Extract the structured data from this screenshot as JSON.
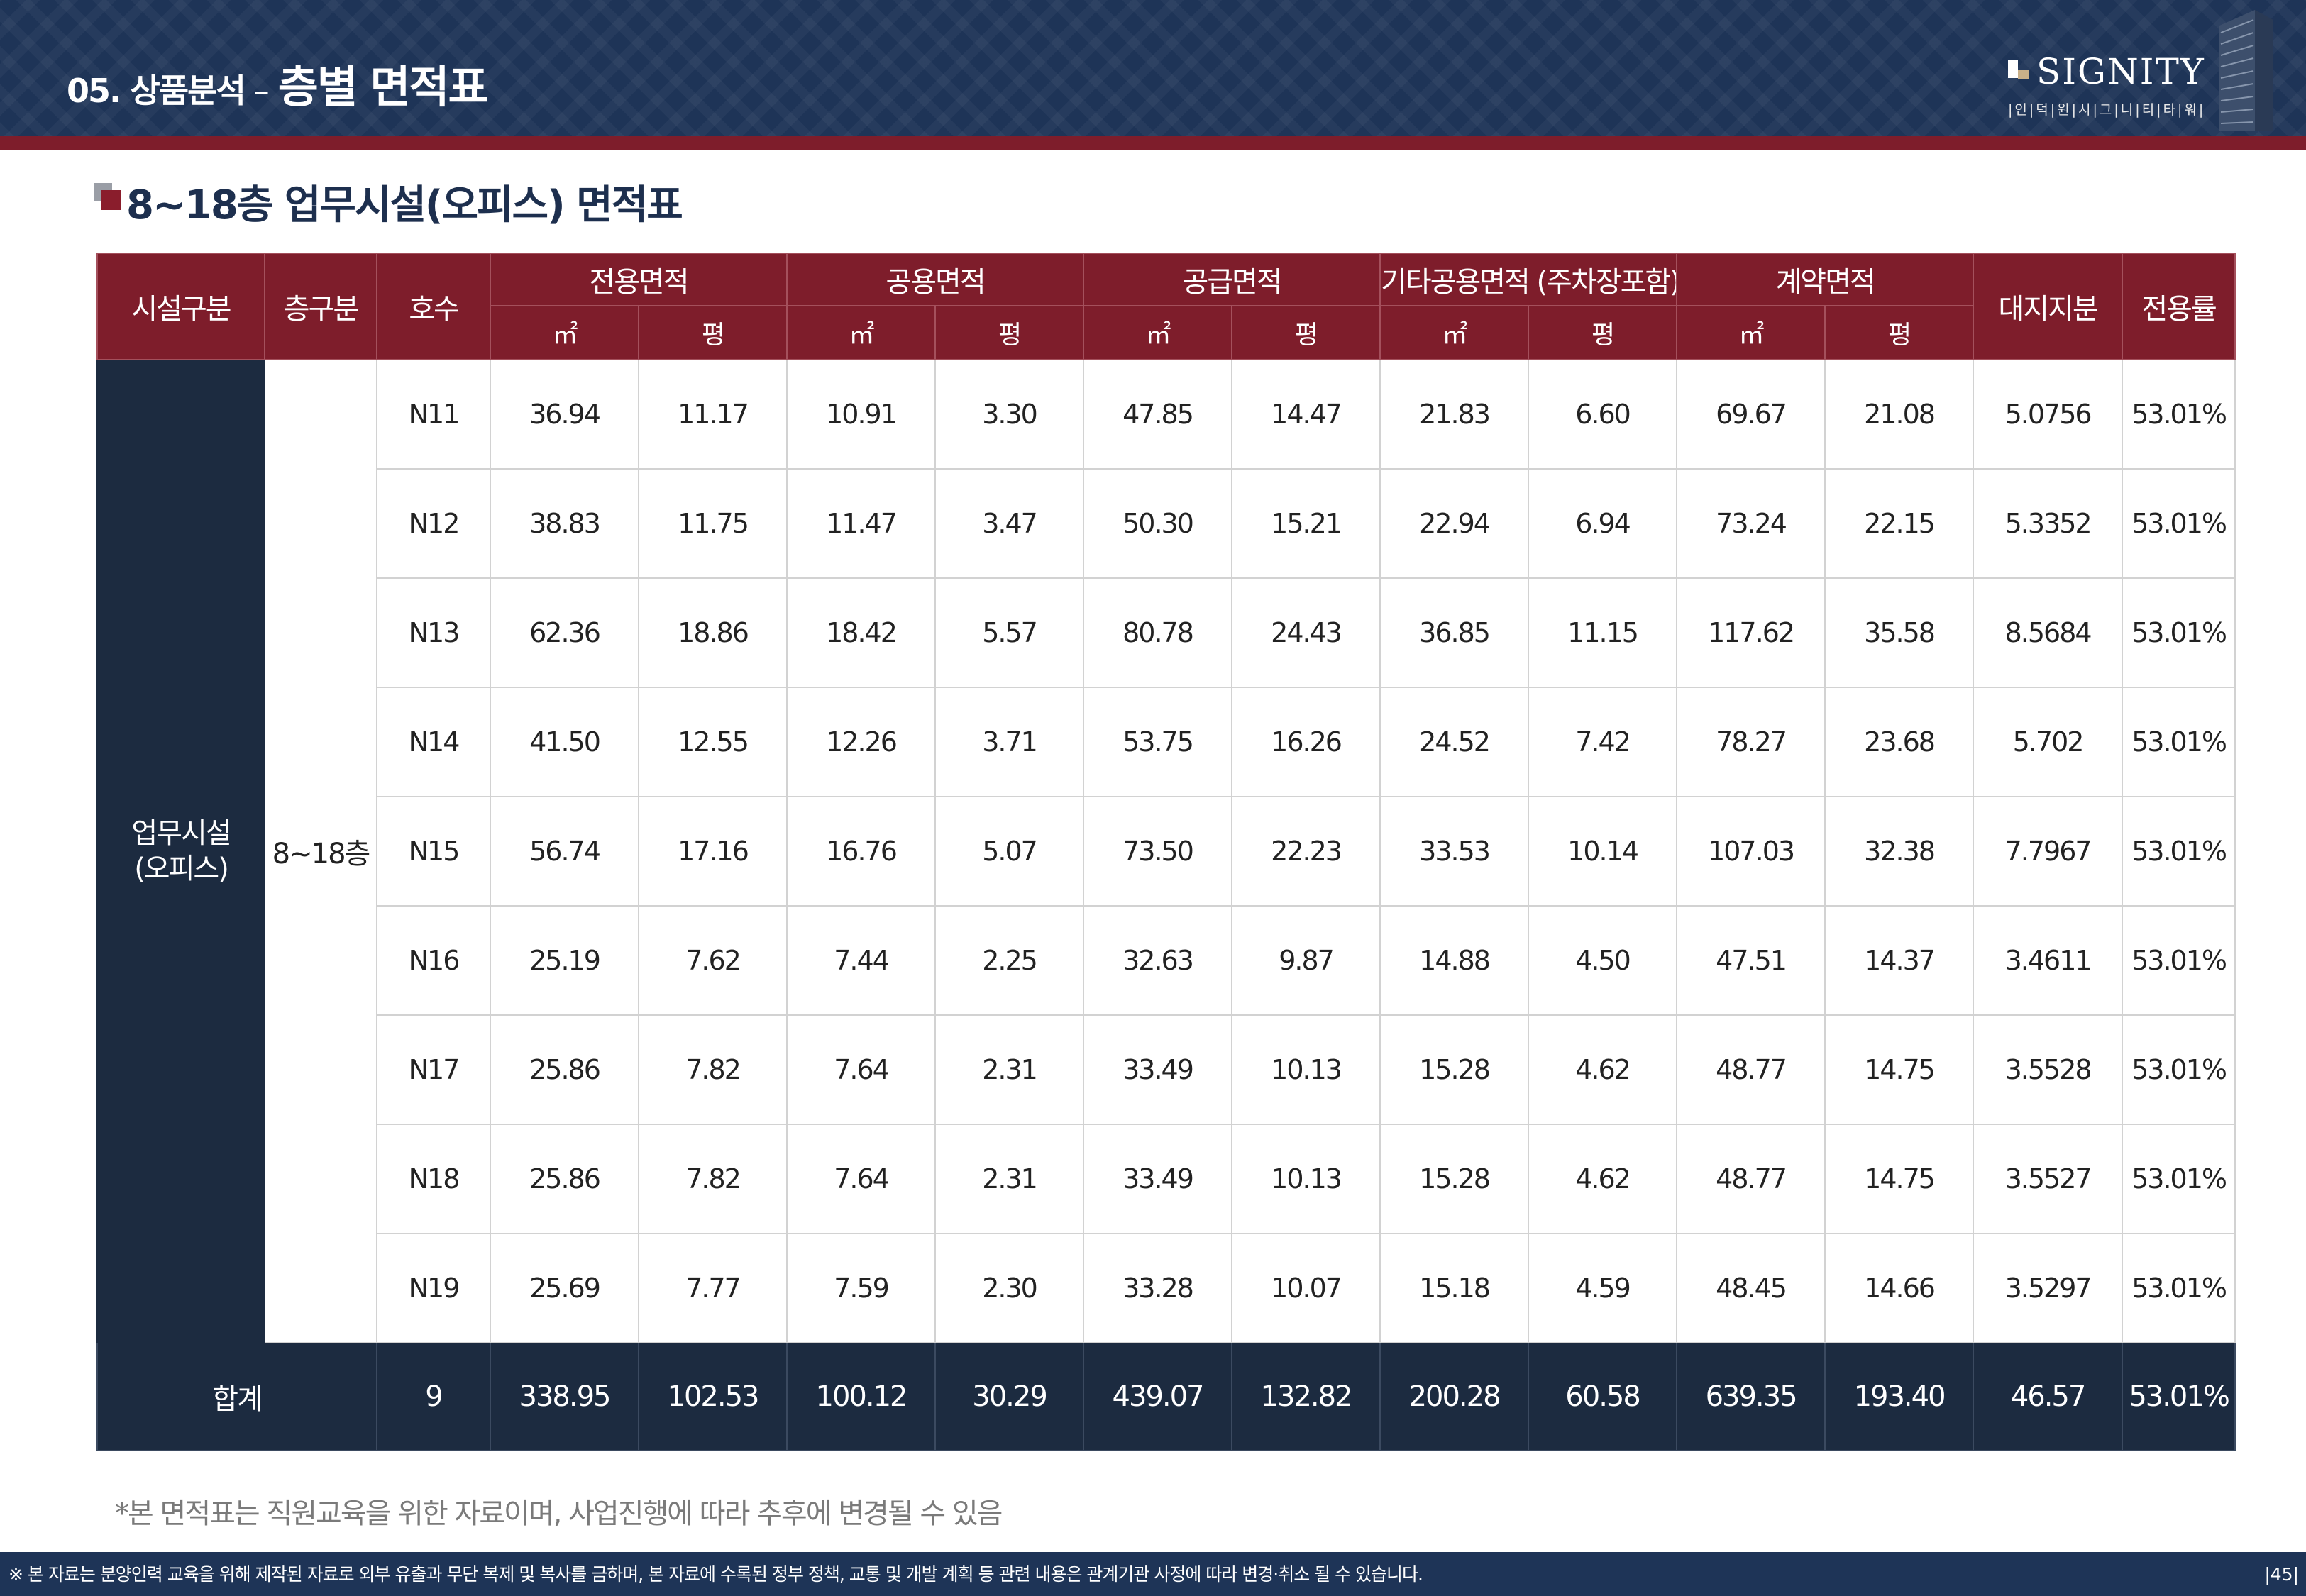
{
  "header": {
    "section": "05. 상품분석",
    "separator": "–",
    "title": "층별 면적표",
    "logo_text": "SIGNITY",
    "logo_sub": "|인|덕|원|시|그|니|티|타|워|",
    "colors": {
      "navy": "#1e3457",
      "maroon": "#7e1d2b",
      "dark": "#1c2b40"
    }
  },
  "subtitle": "8~18층 업무시설(오피스) 면적표",
  "table": {
    "headers": {
      "facility": "시설구분",
      "floor": "층구분",
      "unit": "호수",
      "exclusive": "전용면적",
      "common": "공용면적",
      "supply": "공급면적",
      "other_common": "기타공용면적 (주차장포함)",
      "contract": "계약면적",
      "land": "대지지분",
      "ratio": "전용률",
      "sqm": "㎡",
      "pyeong": "평"
    },
    "facility_label": "업무시설\n(오피스)",
    "floor_label": "8~18층",
    "rows": [
      {
        "unit": "N11",
        "ex_m": "36.94",
        "ex_p": "11.17",
        "co_m": "10.91",
        "co_p": "3.30",
        "su_m": "47.85",
        "su_p": "14.47",
        "ot_m": "21.83",
        "ot_p": "6.60",
        "ct_m": "69.67",
        "ct_p": "21.08",
        "land": "5.0756",
        "ratio": "53.01%"
      },
      {
        "unit": "N12",
        "ex_m": "38.83",
        "ex_p": "11.75",
        "co_m": "11.47",
        "co_p": "3.47",
        "su_m": "50.30",
        "su_p": "15.21",
        "ot_m": "22.94",
        "ot_p": "6.94",
        "ct_m": "73.24",
        "ct_p": "22.15",
        "land": "5.3352",
        "ratio": "53.01%"
      },
      {
        "unit": "N13",
        "ex_m": "62.36",
        "ex_p": "18.86",
        "co_m": "18.42",
        "co_p": "5.57",
        "su_m": "80.78",
        "su_p": "24.43",
        "ot_m": "36.85",
        "ot_p": "11.15",
        "ct_m": "117.62",
        "ct_p": "35.58",
        "land": "8.5684",
        "ratio": "53.01%"
      },
      {
        "unit": "N14",
        "ex_m": "41.50",
        "ex_p": "12.55",
        "co_m": "12.26",
        "co_p": "3.71",
        "su_m": "53.75",
        "su_p": "16.26",
        "ot_m": "24.52",
        "ot_p": "7.42",
        "ct_m": "78.27",
        "ct_p": "23.68",
        "land": "5.702",
        "ratio": "53.01%"
      },
      {
        "unit": "N15",
        "ex_m": "56.74",
        "ex_p": "17.16",
        "co_m": "16.76",
        "co_p": "5.07",
        "su_m": "73.50",
        "su_p": "22.23",
        "ot_m": "33.53",
        "ot_p": "10.14",
        "ct_m": "107.03",
        "ct_p": "32.38",
        "land": "7.7967",
        "ratio": "53.01%"
      },
      {
        "unit": "N16",
        "ex_m": "25.19",
        "ex_p": "7.62",
        "co_m": "7.44",
        "co_p": "2.25",
        "su_m": "32.63",
        "su_p": "9.87",
        "ot_m": "14.88",
        "ot_p": "4.50",
        "ct_m": "47.51",
        "ct_p": "14.37",
        "land": "3.4611",
        "ratio": "53.01%"
      },
      {
        "unit": "N17",
        "ex_m": "25.86",
        "ex_p": "7.82",
        "co_m": "7.64",
        "co_p": "2.31",
        "su_m": "33.49",
        "su_p": "10.13",
        "ot_m": "15.28",
        "ot_p": "4.62",
        "ct_m": "48.77",
        "ct_p": "14.75",
        "land": "3.5528",
        "ratio": "53.01%"
      },
      {
        "unit": "N18",
        "ex_m": "25.86",
        "ex_p": "7.82",
        "co_m": "7.64",
        "co_p": "2.31",
        "su_m": "33.49",
        "su_p": "10.13",
        "ot_m": "15.28",
        "ot_p": "4.62",
        "ct_m": "48.77",
        "ct_p": "14.75",
        "land": "3.5527",
        "ratio": "53.01%"
      },
      {
        "unit": "N19",
        "ex_m": "25.69",
        "ex_p": "7.77",
        "co_m": "7.59",
        "co_p": "2.30",
        "su_m": "33.28",
        "su_p": "10.07",
        "ot_m": "15.18",
        "ot_p": "4.59",
        "ct_m": "48.45",
        "ct_p": "14.66",
        "land": "3.5297",
        "ratio": "53.01%"
      }
    ],
    "total": {
      "label": "합계",
      "unit": "9",
      "ex_m": "338.95",
      "ex_p": "102.53",
      "co_m": "100.12",
      "co_p": "30.29",
      "su_m": "439.07",
      "su_p": "132.82",
      "ot_m": "200.28",
      "ot_p": "60.58",
      "ct_m": "639.35",
      "ct_p": "193.40",
      "land": "46.57",
      "ratio": "53.01%"
    }
  },
  "note": "*본 면적표는 직원교육을 위한 자료이며, 사업진행에 따라 추후에 변경될 수 있음",
  "footer": {
    "disclaimer": "※ 본 자료는 분양인력 교육을 위해 제작된 자료로 외부 유출과 무단 복제 및 복사를 금하며, 본 자료에 수록된 정부 정책, 교통 및 개발 계획 등 관련 내용은 관계기관 사정에 따라 변경·취소 될 수 있습니다.",
    "page": "|45|"
  }
}
